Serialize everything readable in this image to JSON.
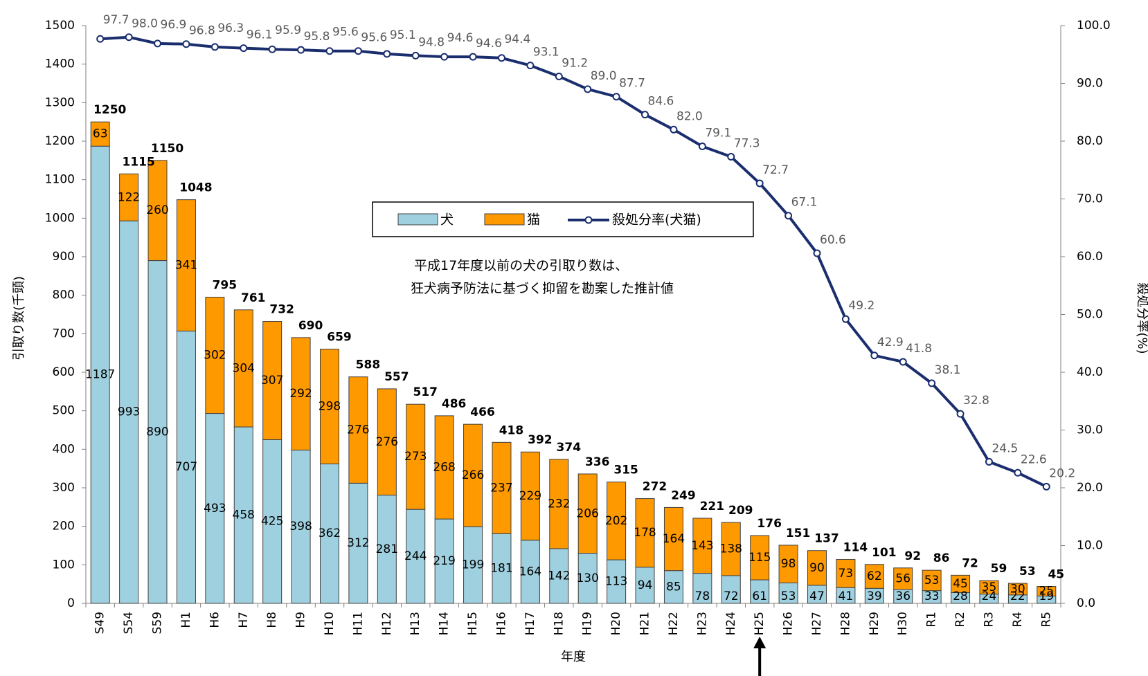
{
  "chart_data": {
    "type": "bar",
    "stacked": true,
    "categories": [
      "S49",
      "S54",
      "S59",
      "H1",
      "H6",
      "H7",
      "H8",
      "H9",
      "H10",
      "H11",
      "H12",
      "H13",
      "H14",
      "H15",
      "H16",
      "H17",
      "H18",
      "H19",
      "H20",
      "H21",
      "H22",
      "H23",
      "H24",
      "H25",
      "H26",
      "H27",
      "H28",
      "H29",
      "H30",
      "R1",
      "R2",
      "R3",
      "R4",
      "R5"
    ],
    "series": [
      {
        "name": "犬",
        "color": "#9fd0df",
        "values": [
          1187,
          993,
          890,
          707,
          493,
          458,
          425,
          398,
          362,
          312,
          281,
          244,
          219,
          199,
          181,
          164,
          142,
          130,
          113,
          94,
          85,
          78,
          72,
          61,
          53,
          47,
          41,
          39,
          36,
          33,
          28,
          24,
          22,
          19
        ]
      },
      {
        "name": "猫",
        "color": "#ff9900",
        "values": [
          63,
          122,
          260,
          341,
          302,
          304,
          307,
          292,
          298,
          276,
          276,
          273,
          268,
          266,
          237,
          229,
          232,
          206,
          202,
          178,
          164,
          143,
          138,
          115,
          98,
          90,
          73,
          62,
          56,
          53,
          45,
          35,
          30,
          25
        ]
      }
    ],
    "totals": [
      1250,
      1115,
      1150,
      1048,
      795,
      761,
      732,
      690,
      659,
      588,
      557,
      517,
      486,
      466,
      418,
      392,
      374,
      336,
      315,
      272,
      249,
      221,
      209,
      176,
      151,
      137,
      114,
      101,
      92,
      86,
      72,
      59,
      53,
      45
    ],
    "line_series": {
      "name": "殺処分率(犬猫)",
      "color": "#1a2e6e",
      "axis": "right",
      "values": [
        97.7,
        98.0,
        96.9,
        96.8,
        96.3,
        96.1,
        95.9,
        95.8,
        95.6,
        95.6,
        95.1,
        94.8,
        94.6,
        94.6,
        94.4,
        93.1,
        91.2,
        89.0,
        87.7,
        84.6,
        82.0,
        79.1,
        77.3,
        72.7,
        67.1,
        60.6,
        49.2,
        42.9,
        41.8,
        38.1,
        32.8,
        24.5,
        22.6,
        20.2
      ]
    },
    "xlabel": "年度",
    "ylabel": "引取り数(千頭)",
    "y2label": "殺処分率(%)",
    "ylim": [
      0,
      1500
    ],
    "y2lim": [
      0,
      100
    ],
    "yticks": [
      0,
      100,
      200,
      300,
      400,
      500,
      600,
      700,
      800,
      900,
      1000,
      1100,
      1200,
      1300,
      1400,
      1500
    ],
    "y2ticks": [
      "0.0",
      "10.0",
      "20.0",
      "30.0",
      "40.0",
      "50.0",
      "60.0",
      "70.0",
      "80.0",
      "90.0",
      "100.0"
    ],
    "legend": {
      "placement": "top-center",
      "items": [
        "犬",
        "猫",
        "殺処分率(犬猫)"
      ]
    },
    "annotation": [
      "平成17年度以前の犬の引取り数は、",
      "狂犬病予防法に基づく抑留を勘案した推計値"
    ],
    "marker": {
      "category": "H25",
      "symbol": "arrow-up"
    },
    "grid": false
  }
}
